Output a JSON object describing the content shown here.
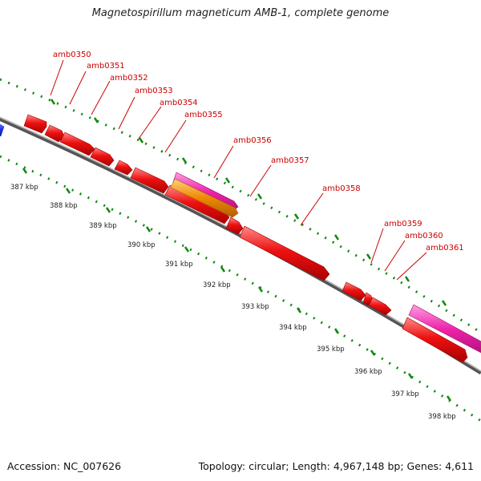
{
  "title": "Magnetospirillum magneticum AMB-1, complete genome",
  "accession": "Accession: NC_007626",
  "topology": "Topology: circular; Length: 4,967,148 bp; Genes: 4,611",
  "colors": {
    "cds": "#ee1111",
    "rna": "#ee22aa",
    "other": "#ee8800",
    "upstream": "#2233ee",
    "label": "#cc0000",
    "ticks": "#118811",
    "backbone": "#888888"
  },
  "gene_labels": [
    "amb0350",
    "amb0351",
    "amb0352",
    "amb0353",
    "amb0354",
    "amb0355",
    "amb0356",
    "amb0357",
    "amb0358",
    "amb0359",
    "amb0360",
    "amb0361"
  ],
  "kbp_ticks": [
    "387 kbp",
    "388 kbp",
    "389 kbp",
    "390 kbp",
    "391 kbp",
    "392 kbp",
    "393 kbp",
    "394 kbp",
    "395 kbp",
    "396 kbp",
    "397 kbp",
    "398 kbp"
  ]
}
